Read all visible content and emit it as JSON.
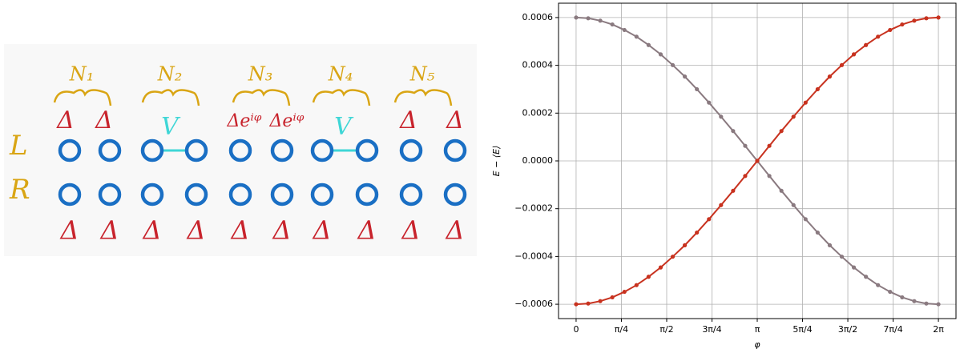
{
  "diagram": {
    "row_labels": [
      "L",
      "R"
    ],
    "group_labels": [
      "N₁",
      "N₂",
      "N₃",
      "N₄",
      "N₅"
    ],
    "top_labels": [
      "Δ",
      "Δ",
      "V",
      "Δeⁱᵠ",
      "Δeⁱᵠ",
      "V",
      "Δ",
      "Δ"
    ],
    "bottom_labels": [
      "Δ",
      "Δ",
      "Δ",
      "Δ",
      "Δ",
      "Δ",
      "Δ",
      "Δ",
      "Δ",
      "Δ"
    ]
  },
  "chart_data": {
    "type": "line",
    "xlabel": "φ",
    "ylabel": "E − ⟨E⟩",
    "x": [
      0,
      0.2094,
      0.4189,
      0.6283,
      0.8378,
      1.0472,
      1.2566,
      1.4661,
      1.6755,
      1.885,
      2.0944,
      2.3038,
      2.5133,
      2.7227,
      2.9322,
      3.1416,
      3.351,
      3.5605,
      3.7699,
      3.9794,
      4.1888,
      4.3982,
      4.6077,
      4.8171,
      5.0265,
      5.236,
      5.4454,
      5.6549,
      5.8643,
      6.0737,
      6.2832
    ],
    "series": [
      {
        "color": "#8a7a80",
        "values": [
          0.0006,
          0.000597,
          0.000587,
          0.000571,
          0.000548,
          0.00052,
          0.000485,
          0.000446,
          0.000401,
          0.000353,
          0.0003,
          0.000244,
          0.000185,
          0.000125,
          6.3e-05,
          0,
          -6.3e-05,
          -0.000125,
          -0.000185,
          -0.000244,
          -0.0003,
          -0.000353,
          -0.000401,
          -0.000446,
          -0.000485,
          -0.00052,
          -0.000548,
          -0.000571,
          -0.000587,
          -0.000597,
          -0.0006
        ]
      },
      {
        "color": "#c8321f",
        "values": [
          -0.0006,
          -0.000597,
          -0.000587,
          -0.000571,
          -0.000548,
          -0.00052,
          -0.000485,
          -0.000446,
          -0.000401,
          -0.000353,
          -0.0003,
          -0.000244,
          -0.000185,
          -0.000125,
          -6.3e-05,
          0,
          6.3e-05,
          0.000125,
          0.000185,
          0.000244,
          0.0003,
          0.000353,
          0.000401,
          0.000446,
          0.000485,
          0.00052,
          0.000548,
          0.000571,
          0.000587,
          0.000597,
          0.0006
        ]
      }
    ],
    "xlim": [
      -0.305,
      6.588
    ],
    "ylim": [
      -0.00066,
      0.00066
    ],
    "xticks": [
      0,
      {
        "value": 0.7854,
        "label": "π/4"
      },
      {
        "value": 1.5708,
        "label": "π/2"
      },
      {
        "value": 2.3562,
        "label": "3π/4"
      },
      {
        "value": 3.1416,
        "label": "π"
      },
      {
        "value": 3.927,
        "label": "5π/4"
      },
      {
        "value": 4.7124,
        "label": "3π/2"
      },
      {
        "value": 5.4978,
        "label": "7π/4"
      },
      {
        "value": 6.2832,
        "label": "2π"
      }
    ],
    "yticks": [
      {
        "value": -0.0006,
        "label": "−0.0006"
      },
      {
        "value": -0.0004,
        "label": "−0.0004"
      },
      {
        "value": -0.0002,
        "label": "−0.0002"
      },
      {
        "value": 0,
        "label": "0.0000"
      },
      0.0002,
      0.0004,
      0.0006
    ],
    "grid": true
  }
}
